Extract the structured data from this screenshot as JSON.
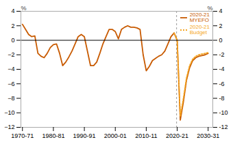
{
  "chart_data": {
    "type": "line",
    "ylabel": "%",
    "y2label": "%",
    "xlim": [
      1969.5,
      2031.5
    ],
    "xticks": [
      {
        "value": 1970,
        "label": "1970-71"
      },
      {
        "value": 1980,
        "label": "1980-81"
      },
      {
        "value": 1990,
        "label": "1990-91"
      },
      {
        "value": 2000,
        "label": "2000-01"
      },
      {
        "value": 2010,
        "label": "2010-11"
      },
      {
        "value": 2020,
        "label": "2020-21"
      },
      {
        "value": 2030,
        "label": "2030-31"
      }
    ],
    "ylim": [
      -12,
      4
    ],
    "yticks": [
      -12,
      -10,
      -8,
      -6,
      -4,
      -2,
      0,
      2,
      4
    ],
    "y2lim": [
      -12,
      4
    ],
    "y2ticks": [
      -12,
      -10,
      -8,
      -6,
      -4,
      -2,
      0,
      2,
      4
    ],
    "grid": false,
    "legend": "upper right",
    "vline_x": 2019.8,
    "hline_y": 0,
    "series": [
      {
        "color": "#C85A00",
        "line_style": "solid",
        "x": [
          1970,
          1971,
          1972,
          1973,
          1974,
          1975,
          1976,
          1977,
          1978,
          1979,
          1980,
          1981,
          1982,
          1983,
          1984,
          1985,
          1986,
          1987,
          1988,
          1989,
          1990,
          1991,
          1992,
          1993,
          1994,
          1995,
          1996,
          1997,
          1998,
          1999,
          2000,
          2001,
          2002,
          2003,
          2004,
          2005,
          2006,
          2007,
          2008,
          2009,
          2010,
          2011,
          2012,
          2013,
          2014,
          2015,
          2016,
          2017,
          2018,
          2019
        ],
        "values": [
          2.2,
          1.5,
          0.8,
          0.5,
          0.6,
          -1.8,
          -2.2,
          -2.4,
          -1.8,
          -1.0,
          -0.6,
          -0.5,
          -1.8,
          -3.5,
          -3.0,
          -2.3,
          -1.5,
          -0.5,
          0.5,
          0.8,
          0.5,
          -1.5,
          -3.5,
          -3.5,
          -3.0,
          -1.8,
          -0.5,
          0.5,
          1.5,
          1.5,
          1.2,
          0.2,
          1.5,
          1.8,
          2.0,
          1.8,
          1.8,
          1.7,
          1.5,
          -2.0,
          -4.2,
          -3.6,
          -2.8,
          -2.5,
          -2.2,
          -2.0,
          -1.5,
          -0.5,
          0.5,
          1.0
        ]
      },
      {
        "name": "2020-21\nMYEFO",
        "color": "#C85A00",
        "line_style": "solid",
        "x": [
          2019,
          2020,
          2021,
          2022,
          2023,
          2024,
          2025,
          2026,
          2027,
          2028,
          2029,
          2030
        ],
        "values": [
          1.0,
          0.0,
          -11.0,
          -8.5,
          -5.5,
          -3.8,
          -2.8,
          -2.4,
          -2.2,
          -2.1,
          -2.0,
          -1.8
        ]
      },
      {
        "name": "2020-21\nBudget",
        "color": "#F5A623",
        "line_style": "dotted",
        "x": [
          2019,
          2020,
          2021,
          2022,
          2023,
          2024,
          2025,
          2026,
          2027,
          2028,
          2029,
          2030
        ],
        "values": [
          1.0,
          0.0,
          -10.5,
          -8.0,
          -5.2,
          -3.5,
          -2.6,
          -2.2,
          -2.0,
          -1.9,
          -1.8,
          -1.7
        ]
      }
    ]
  }
}
